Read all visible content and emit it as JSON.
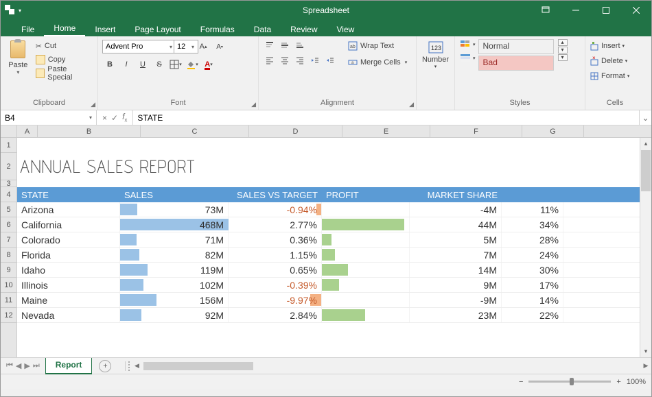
{
  "window": {
    "title": "Spreadsheet"
  },
  "menu": {
    "tabs": [
      "File",
      "Home",
      "Insert",
      "Page Layout",
      "Formulas",
      "Data",
      "Review",
      "View"
    ],
    "active": "Home"
  },
  "ribbon": {
    "clipboard": {
      "label": "Clipboard",
      "paste": "Paste",
      "cut": "Cut",
      "copy": "Copy",
      "paste_special": "Paste Special"
    },
    "font": {
      "label": "Font",
      "name": "Advent Pro",
      "size": "12",
      "bold": "B",
      "italic": "I",
      "underline": "U",
      "strike": "S"
    },
    "alignment": {
      "label": "Alignment",
      "wrap": "Wrap Text",
      "merge": "Merge Cells"
    },
    "number": {
      "label": "Number",
      "btn": "Number"
    },
    "styles": {
      "label": "Styles",
      "normal": "Normal",
      "bad": "Bad"
    },
    "cells": {
      "label": "Cells",
      "insert": "Insert",
      "delete": "Delete",
      "format": "Format"
    }
  },
  "formula_bar": {
    "cell_ref": "B4",
    "value": "STATE"
  },
  "columns": {
    "letters": [
      "A",
      "B",
      "C",
      "D",
      "E",
      "F",
      "G"
    ],
    "widths": [
      30,
      150,
      158,
      136,
      128,
      134,
      90
    ]
  },
  "row_headers": [
    1,
    2,
    3,
    4,
    5,
    6,
    7,
    8,
    9,
    10,
    11,
    12
  ],
  "report": {
    "title": "ANNUAL SALES REPORT",
    "headers": {
      "state": "STATE",
      "sales": "SALES",
      "vs": "SALES VS TARGET",
      "profit": "PROFIT",
      "share": "MARKET SHARE"
    },
    "header_bg": "#5b9bd5",
    "bar_blue": "#9bc2e6",
    "bar_green": "#a9d18e",
    "bar_orange": "#f4b183",
    "neg_color": "#c55a2a",
    "max_sales": 468,
    "max_profit": 44,
    "rows": [
      {
        "state": "Arizona",
        "sales": "73M",
        "sales_v": 73,
        "vs": "-0.94%",
        "vs_neg": true,
        "profit": "-4M",
        "profit_v": -4,
        "share": "11%"
      },
      {
        "state": "California",
        "sales": "468M",
        "sales_v": 468,
        "vs": "2.77%",
        "vs_neg": false,
        "profit": "44M",
        "profit_v": 44,
        "share": "34%"
      },
      {
        "state": "Colorado",
        "sales": "71M",
        "sales_v": 71,
        "vs": "0.36%",
        "vs_neg": false,
        "profit": "5M",
        "profit_v": 5,
        "share": "28%"
      },
      {
        "state": "Florida",
        "sales": "82M",
        "sales_v": 82,
        "vs": "1.15%",
        "vs_neg": false,
        "profit": "7M",
        "profit_v": 7,
        "share": "24%"
      },
      {
        "state": "Idaho",
        "sales": "119M",
        "sales_v": 119,
        "vs": "0.65%",
        "vs_neg": false,
        "profit": "14M",
        "profit_v": 14,
        "share": "30%"
      },
      {
        "state": "Illinois",
        "sales": "102M",
        "sales_v": 102,
        "vs": "-0.39%",
        "vs_neg": true,
        "profit": "9M",
        "profit_v": 9,
        "share": "17%"
      },
      {
        "state": "Maine",
        "sales": "156M",
        "sales_v": 156,
        "vs": "-9.97%",
        "vs_neg": true,
        "profit": "-9M",
        "profit_v": -9,
        "share": "14%"
      },
      {
        "state": "Nevada",
        "sales": "92M",
        "sales_v": 92,
        "vs": "2.84%",
        "vs_neg": false,
        "profit": "23M",
        "profit_v": 23,
        "share": "22%"
      }
    ]
  },
  "sheet_tab": {
    "name": "Report"
  },
  "status": {
    "zoom": "100%"
  }
}
